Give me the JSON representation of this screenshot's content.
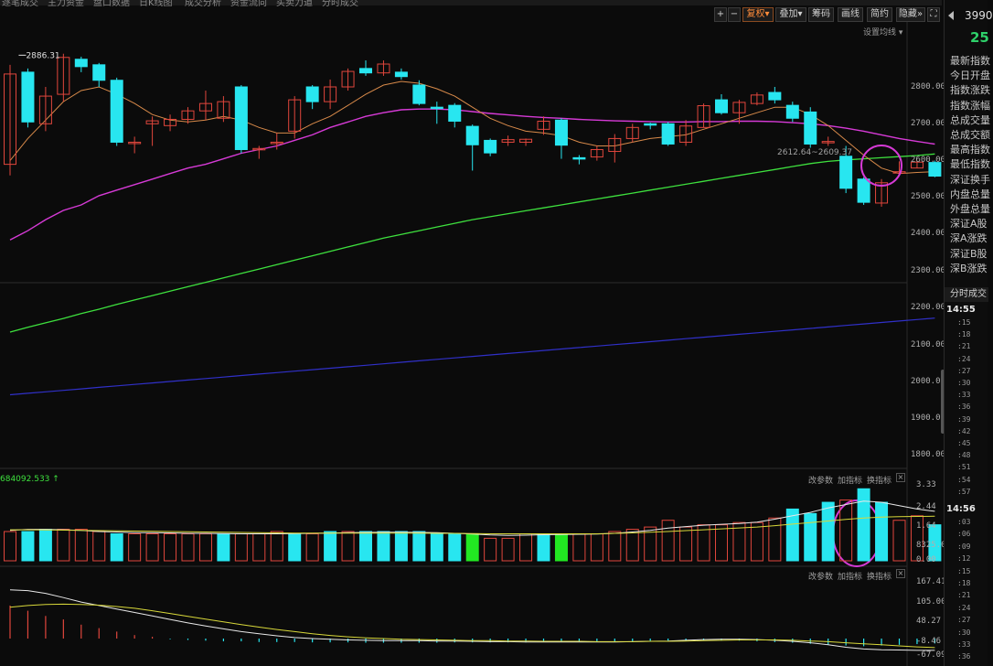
{
  "top_tabs": [
    "逐笔成交",
    "主力资金",
    "盘口数据",
    "日K线图",
    "成交分析",
    "资金流向",
    "买卖力道",
    "分时成交"
  ],
  "toolbar": {
    "plus": "+",
    "minus": "−",
    "fuquan": "复权",
    "diejia": "叠加",
    "chouma": "筹码",
    "huaxian": "画线",
    "jianyue": "简约",
    "yincang": "隐藏",
    "fullscreen": "⛶",
    "dropdown_caret": "▾",
    "double_arrow": "»"
  },
  "ma_settings": "设置均线 ▾",
  "price_axis": [
    "2800.00",
    "2700.00",
    "2600.00",
    "2500.00",
    "2400.00",
    "2300.00",
    "2200.00",
    "2100.00",
    "2000.00",
    "1900.00",
    "1800.00"
  ],
  "annotations": {
    "high": "2886.31",
    "range": "2612.64~2609.37"
  },
  "volume": {
    "header": "684092.533",
    "buttons": [
      "改参数",
      "加指标",
      "换指标"
    ],
    "axis": [
      "3.33",
      "2.44",
      "1.64",
      "8325.00",
      "0.00"
    ]
  },
  "macd": {
    "buttons": [
      "改参数",
      "加指标",
      "换指标"
    ],
    "axis": [
      "167.41",
      "105.00",
      "48.27",
      "-8.46",
      "-67.09"
    ]
  },
  "right_panel": {
    "code": "3990",
    "value": "25",
    "fields": [
      "最新指数",
      "今日开盘",
      "指数涨跌",
      "指数涨幅",
      "总成交量",
      "总成交额",
      "最高指数",
      "最低指数",
      "深证换手",
      "内盘总量",
      "外盘总量",
      "深证A股",
      "深A涨跌",
      "深证B股",
      "深B涨跌"
    ],
    "section_title": "分时成交",
    "time1": "14:55",
    "secs1": [
      ":15",
      ":18",
      ":21",
      ":24",
      ":27",
      ":30",
      ":33",
      ":36",
      ":39",
      ":42",
      ":45",
      ":48",
      ":51",
      ":54",
      ":57"
    ],
    "time2": "14:56",
    "secs2": [
      ":03",
      ":06",
      ":09",
      ":12",
      ":15",
      ":18",
      ":21",
      ":24",
      ":27",
      ":30",
      ":33",
      ":36"
    ]
  },
  "colors": {
    "up": "#e0463c",
    "down": "#28e6f0",
    "ma_short": "#d88a4a",
    "ma_mid": "#d63ad6",
    "ma_long": "#3ee03e",
    "ma_xlong": "#3030c8",
    "highlight_circle": "#d63ad6"
  },
  "chart_data": {
    "type": "candlestick",
    "candles": [
      [
        2590,
        2835,
        2860,
        2560
      ],
      [
        2840,
        2705,
        2850,
        2690
      ],
      [
        2700,
        2775,
        2800,
        2680
      ],
      [
        2780,
        2880,
        2890,
        2760
      ],
      [
        2875,
        2855,
        2882,
        2840
      ],
      [
        2860,
        2818,
        2865,
        2800
      ],
      [
        2818,
        2650,
        2825,
        2640
      ],
      [
        2650,
        2650,
        2665,
        2620
      ],
      [
        2700,
        2708,
        2720,
        2640
      ],
      [
        2695,
        2712,
        2725,
        2680
      ],
      [
        2712,
        2735,
        2745,
        2700
      ],
      [
        2735,
        2755,
        2790,
        2710
      ],
      [
        2715,
        2760,
        2775,
        2705
      ],
      [
        2800,
        2630,
        2805,
        2620
      ],
      [
        2630,
        2633,
        2640,
        2605
      ],
      [
        2650,
        2650,
        2675,
        2630
      ],
      [
        2680,
        2765,
        2775,
        2660
      ],
      [
        2800,
        2760,
        2805,
        2740
      ],
      [
        2760,
        2800,
        2820,
        2740
      ],
      [
        2800,
        2842,
        2850,
        2790
      ],
      [
        2850,
        2838,
        2872,
        2830
      ],
      [
        2838,
        2862,
        2872,
        2830
      ],
      [
        2840,
        2828,
        2850,
        2820
      ],
      [
        2805,
        2755,
        2818,
        2750
      ],
      [
        2745,
        2742,
        2760,
        2700
      ],
      [
        2750,
        2707,
        2756,
        2690
      ],
      [
        2693,
        2643,
        2698,
        2573
      ],
      [
        2655,
        2621,
        2660,
        2612
      ],
      [
        2650,
        2657,
        2668,
        2640
      ],
      [
        2650,
        2658,
        2660,
        2640
      ],
      [
        2685,
        2707,
        2720,
        2670
      ],
      [
        2710,
        2642,
        2715,
        2605
      ],
      [
        2608,
        2607,
        2615,
        2590
      ],
      [
        2610,
        2630,
        2640,
        2600
      ],
      [
        2625,
        2660,
        2672,
        2595
      ],
      [
        2660,
        2690,
        2700,
        2650
      ],
      [
        2700,
        2697,
        2703,
        2685
      ],
      [
        2700,
        2645,
        2705,
        2640
      ],
      [
        2650,
        2694,
        2710,
        2640
      ],
      [
        2690,
        2749,
        2755,
        2690
      ],
      [
        2765,
        2730,
        2780,
        2725
      ],
      [
        2730,
        2758,
        2765,
        2700
      ],
      [
        2755,
        2778,
        2785,
        2750
      ],
      [
        2785,
        2765,
        2800,
        2755
      ],
      [
        2750,
        2715,
        2760,
        2705
      ],
      [
        2732,
        2645,
        2745,
        2635
      ],
      [
        2650,
        2652,
        2665,
        2640
      ],
      [
        2612,
        2525,
        2640,
        2512
      ],
      [
        2550,
        2487,
        2555,
        2480
      ],
      [
        2485,
        2540,
        2550,
        2475
      ],
      [
        2570,
        2570,
        2598,
        2558
      ],
      [
        2580,
        2596,
        2600,
        2580
      ],
      [
        2595,
        2558,
        2600,
        2555
      ]
    ],
    "ma_short": [
      2600,
      2660,
      2710,
      2760,
      2790,
      2800,
      2780,
      2755,
      2725,
      2710,
      2705,
      2710,
      2720,
      2710,
      2690,
      2675,
      2675,
      2700,
      2720,
      2750,
      2780,
      2805,
      2815,
      2810,
      2795,
      2775,
      2745,
      2715,
      2695,
      2680,
      2675,
      2668,
      2650,
      2640,
      2640,
      2650,
      2660,
      2665,
      2670,
      2685,
      2700,
      2715,
      2730,
      2745,
      2745,
      2725,
      2695,
      2655,
      2615,
      2580,
      2565,
      2568,
      2570
    ],
    "ma_mid": [
      2385,
      2410,
      2440,
      2465,
      2480,
      2505,
      2520,
      2535,
      2550,
      2565,
      2580,
      2590,
      2605,
      2620,
      2630,
      2640,
      2655,
      2670,
      2690,
      2705,
      2720,
      2730,
      2738,
      2740,
      2740,
      2738,
      2733,
      2728,
      2724,
      2720,
      2717,
      2715,
      2712,
      2710,
      2708,
      2707,
      2706,
      2705,
      2705,
      2706,
      2706,
      2707,
      2707,
      2706,
      2703,
      2700,
      2695,
      2688,
      2680,
      2670,
      2660,
      2652,
      2645
    ],
    "ma_long": [
      2135,
      2148,
      2160,
      2172,
      2185,
      2197,
      2210,
      2222,
      2234,
      2246,
      2258,
      2270,
      2282,
      2294,
      2306,
      2318,
      2330,
      2342,
      2354,
      2366,
      2378,
      2390,
      2400,
      2410,
      2420,
      2430,
      2440,
      2448,
      2456,
      2464,
      2472,
      2480,
      2488,
      2496,
      2504,
      2512,
      2520,
      2528,
      2536,
      2544,
      2552,
      2560,
      2568,
      2576,
      2584,
      2592,
      2598,
      2602,
      2605,
      2608,
      2611,
      2614,
      2618
    ],
    "ma_xlong": [
      1965,
      1969,
      1973,
      1977,
      1981,
      1985,
      1989,
      1993,
      1997,
      2001,
      2005,
      2009,
      2013,
      2017,
      2021,
      2025,
      2029,
      2033,
      2037,
      2041,
      2045,
      2049,
      2053,
      2057,
      2061,
      2065,
      2069,
      2073,
      2077,
      2081,
      2085,
      2089,
      2093,
      2097,
      2101,
      2105,
      2109,
      2113,
      2117,
      2121,
      2125,
      2129,
      2133,
      2137,
      2141,
      2145,
      2149,
      2153,
      2157,
      2161,
      2165,
      2169,
      2173
    ],
    "volume": [
      1.3,
      1.3,
      1.4,
      1.4,
      1.4,
      1.3,
      1.2,
      1.2,
      1.2,
      1.2,
      1.2,
      1.2,
      1.2,
      1.2,
      1.2,
      1.3,
      1.2,
      1.2,
      1.3,
      1.3,
      1.3,
      1.3,
      1.3,
      1.3,
      1.2,
      1.2,
      1.2,
      1.0,
      1.0,
      1.2,
      1.2,
      1.2,
      1.2,
      1.2,
      1.3,
      1.4,
      1.5,
      1.8,
      1.5,
      1.6,
      1.6,
      1.7,
      1.7,
      1.9,
      2.3,
      2.1,
      2.6,
      2.7,
      3.2,
      2.6,
      1.8,
      2.0,
      1.6
    ],
    "volume_colors": [
      "u",
      "d",
      "d",
      "u",
      "u",
      "u",
      "d",
      "u",
      "u",
      "u",
      "u",
      "u",
      "d",
      "u",
      "u",
      "u",
      "d",
      "u",
      "d",
      "u",
      "d",
      "d",
      "d",
      "d",
      "d",
      "d",
      "g",
      "u",
      "u",
      "u",
      "d",
      "g",
      "u",
      "u",
      "u",
      "u",
      "u",
      "u",
      "u",
      "u",
      "u",
      "u",
      "u",
      "u",
      "d",
      "d",
      "d",
      "u",
      "d",
      "d",
      "u",
      "u",
      "d"
    ],
    "vol_ma1": [
      1.35,
      1.4,
      1.4,
      1.38,
      1.35,
      1.3,
      1.28,
      1.25,
      1.25,
      1.24,
      1.22,
      1.22,
      1.21,
      1.2,
      1.2,
      1.2,
      1.21,
      1.22,
      1.23,
      1.25,
      1.26,
      1.27,
      1.27,
      1.26,
      1.25,
      1.22,
      1.19,
      1.15,
      1.13,
      1.14,
      1.16,
      1.17,
      1.18,
      1.19,
      1.22,
      1.28,
      1.35,
      1.45,
      1.52,
      1.58,
      1.62,
      1.66,
      1.72,
      1.85,
      2.0,
      2.15,
      2.35,
      2.5,
      2.65,
      2.6,
      2.45,
      2.3,
      2.2
    ],
    "vol_ma2": [
      1.38,
      1.38,
      1.37,
      1.36,
      1.35,
      1.34,
      1.33,
      1.32,
      1.31,
      1.3,
      1.29,
      1.28,
      1.27,
      1.26,
      1.25,
      1.24,
      1.23,
      1.23,
      1.23,
      1.23,
      1.23,
      1.23,
      1.23,
      1.23,
      1.22,
      1.22,
      1.21,
      1.2,
      1.2,
      1.2,
      1.2,
      1.2,
      1.2,
      1.2,
      1.22,
      1.24,
      1.27,
      1.3,
      1.34,
      1.38,
      1.42,
      1.46,
      1.5,
      1.56,
      1.63,
      1.7,
      1.77,
      1.84,
      1.9,
      1.94,
      1.96,
      1.97,
      1.98
    ],
    "macd_hist": [
      95,
      80,
      65,
      55,
      40,
      30,
      20,
      10,
      5,
      -2,
      -4,
      -6,
      -8,
      -8,
      -10,
      -10,
      -10,
      -11,
      -11,
      -11,
      -12,
      -12,
      -12,
      -12,
      -12,
      -11,
      -11,
      -11,
      -11,
      -11,
      -10,
      -10,
      -10,
      -9,
      -9,
      -8,
      -7,
      -6,
      -5,
      -5,
      -6,
      -6,
      -8,
      -10,
      -12,
      -15,
      -18,
      -20,
      -22,
      -20,
      -18,
      -16,
      -14
    ],
    "macd_dif": [
      140,
      138,
      130,
      118,
      105,
      95,
      85,
      75,
      65,
      55,
      45,
      36,
      28,
      20,
      14,
      8,
      3,
      0,
      -2,
      -4,
      -5,
      -6,
      -6,
      -6,
      -7,
      -7,
      -8,
      -9,
      -9,
      -10,
      -10,
      -10,
      -10,
      -10,
      -10,
      -9,
      -8,
      -7,
      -5,
      -3,
      -2,
      -2,
      -3,
      -5,
      -8,
      -12,
      -18,
      -25,
      -30,
      -32,
      -33,
      -34,
      -34
    ],
    "macd_dea": [
      90,
      95,
      98,
      99,
      98,
      96,
      92,
      87,
      80,
      72,
      64,
      56,
      48,
      40,
      33,
      26,
      20,
      14,
      9,
      5,
      2,
      0,
      -2,
      -3,
      -4,
      -5,
      -6,
      -6,
      -7,
      -7,
      -8,
      -8,
      -8,
      -9,
      -9,
      -9,
      -8,
      -8,
      -7,
      -6,
      -5,
      -4,
      -4,
      -4,
      -5,
      -7,
      -9,
      -12,
      -15,
      -18,
      -21,
      -24,
      -26
    ]
  }
}
